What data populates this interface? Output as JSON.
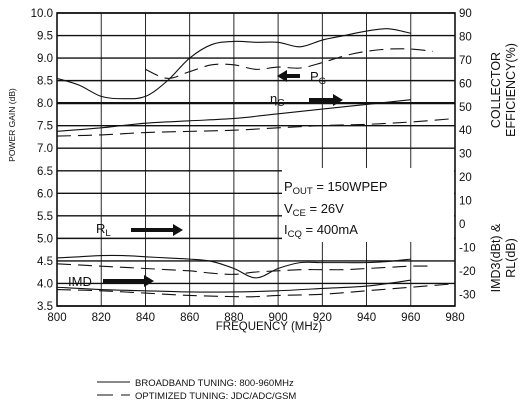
{
  "chart_data": {
    "type": "line",
    "xlabel": "FREQUENCY (MHz)",
    "ylabel_left": "POWER GAIN (dB)",
    "ylabel_right_top": [
      "COLLECTOR",
      "EFFICIENCY(%)"
    ],
    "ylabel_right_bottom": [
      "IMD3(dBt) &",
      "RL(dB)"
    ],
    "xlim": [
      800,
      980
    ],
    "ylim_left": [
      3.5,
      10.0
    ],
    "ylim_right": [
      -35,
      90
    ],
    "x_ticks": [
      "800",
      "820",
      "840",
      "860",
      "880",
      "900",
      "920",
      "940",
      "960",
      "980"
    ],
    "y_left_ticks": [
      "10.0",
      "9.5",
      "9.0",
      "8.5",
      "8.0",
      "7.5",
      "7.0",
      "6.5",
      "6.0",
      "5.5",
      "5.0",
      "4.5",
      "4.0",
      "3.5"
    ],
    "y_right_ticks": [
      "90",
      "80",
      "70",
      "60",
      "50",
      "40",
      "30",
      "20",
      "10",
      "0",
      "-10",
      "-20",
      "-30"
    ],
    "grid": true,
    "annotations": {
      "pg": "P",
      "pg_sub": "G",
      "eta": "η",
      "eta_sub": "C",
      "rl": "R",
      "rl_sub": "L",
      "imd": "IMD",
      "pout_a": "P",
      "pout_sub": "OUT",
      "pout_b": " = 150WPEP",
      "vce_a": "V",
      "vce_sub": "CE",
      "vce_b": " = 26V",
      "icq_a": "I",
      "icq_sub": "CQ",
      "icq_b": " = 400mA"
    },
    "legend": [
      {
        "label": "BROADBAND TUNING: 800-960MHz",
        "style": "solid"
      },
      {
        "label": "OPTIMIZED TUNING: JDC/ADC/GSM",
        "style": "dashed"
      }
    ],
    "series": [
      {
        "axis": "left",
        "style": "solid",
        "x": [
          800,
          810,
          820,
          830,
          840,
          850,
          860,
          870,
          880,
          890,
          900,
          910,
          920,
          930,
          940,
          950,
          960
        ],
        "y": [
          8.55,
          8.4,
          8.15,
          8.1,
          8.15,
          8.5,
          9.0,
          9.3,
          9.37,
          9.35,
          9.35,
          9.25,
          9.4,
          9.5,
          9.6,
          9.65,
          9.55
        ]
      },
      {
        "axis": "left",
        "style": "dashed",
        "x": [
          840,
          850,
          860,
          870,
          880,
          890,
          900,
          910,
          920,
          930,
          940,
          950,
          960,
          970
        ],
        "y": [
          8.75,
          8.55,
          8.7,
          8.85,
          8.85,
          8.75,
          8.8,
          8.78,
          8.9,
          9.05,
          9.15,
          9.2,
          9.2,
          9.15
        ]
      },
      {
        "axis": "right",
        "style": "solid",
        "x": [
          800,
          820,
          840,
          860,
          880,
          900,
          920,
          940,
          960
        ],
        "y": [
          39.5,
          41,
          43,
          44,
          45,
          47,
          49,
          51,
          53
        ]
      },
      {
        "axis": "right",
        "style": "dashed",
        "x": [
          800,
          820,
          840,
          860,
          880,
          900,
          920,
          940,
          960,
          980
        ],
        "y": [
          37.5,
          38,
          39,
          39.5,
          40,
          41,
          42,
          42.5,
          43.5,
          45
        ]
      },
      {
        "axis": "right",
        "style": "solid",
        "x": [
          800,
          810,
          820,
          830,
          840,
          850,
          860,
          870,
          880,
          890,
          900,
          910,
          920,
          930,
          940,
          950,
          960
        ],
        "y": [
          -14.5,
          -14,
          -13.5,
          -13.5,
          -14,
          -14.5,
          -15,
          -16,
          -19,
          -23,
          -19,
          -16.5,
          -16.5,
          -16.5,
          -16.5,
          -16,
          -15
        ]
      },
      {
        "axis": "right",
        "style": "dashed",
        "x": [
          800,
          810,
          820,
          830,
          840,
          850,
          860,
          870,
          880,
          890,
          900,
          910,
          920,
          930,
          940,
          950,
          960,
          970
        ],
        "y": [
          -17,
          -17.5,
          -18,
          -18.5,
          -19,
          -19.5,
          -20,
          -21,
          -21.5,
          -20.5,
          -20,
          -19.5,
          -19.5,
          -19.5,
          -19,
          -18.5,
          -18,
          -18
        ]
      },
      {
        "axis": "right",
        "style": "solid",
        "x": [
          800,
          820,
          840,
          860,
          880,
          900,
          920,
          940,
          960
        ],
        "y": [
          -27,
          -28,
          -28.5,
          -29,
          -29,
          -28.5,
          -27.5,
          -26.5,
          -24
        ]
      },
      {
        "axis": "right",
        "style": "dashed",
        "x": [
          800,
          820,
          840,
          860,
          880,
          890,
          900,
          920,
          940,
          960,
          980
        ],
        "y": [
          -28,
          -28.5,
          -29.5,
          -30.5,
          -31,
          -31,
          -30.5,
          -30,
          -28.5,
          -27,
          -25.5
        ]
      }
    ]
  }
}
